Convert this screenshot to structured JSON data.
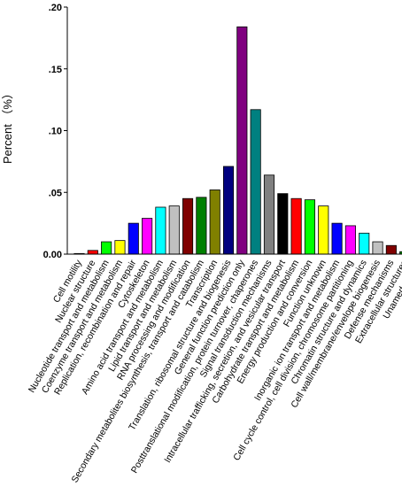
{
  "chart_data": {
    "type": "bar",
    "title": "",
    "xlabel": "",
    "ylabel": "Percent （%）",
    "ylim": [
      0,
      0.2
    ],
    "yticks": [
      ".20",
      ".15",
      ".10",
      ".05",
      "0.00"
    ],
    "grid": false,
    "legend": "none",
    "categories": [
      "Cell motility",
      "Nuclear structure",
      "Nucleotide transport and metabolism",
      "Coenzyme transport and metabolism",
      "Replication, recombination and repair",
      "Cytoskeleton",
      "Amino acid transport and metabolism",
      "Lipid transport and metabolism",
      "RNA processing and modification",
      "Secondary metabolites biosynthesis, transport and catabolism",
      "Transcription",
      "Translation, ribosomal structure and biogenesis",
      "General function prediction only",
      "Posttranslational modification, protein turnover, chaperones",
      "Signal transduction mechanisms",
      "Intracellular trafficking, secretion, and vesicular transport",
      "Carbohydrate transport and metabolism",
      "Energy production and conversion",
      "Function unknown",
      "Inorganic ion transport and metabolism",
      "Cell cycle control, cell division, chromosome partitioning",
      "Chromatin structure and dynamics",
      "Cell wall/membrane/envelope biogenesis",
      "Defense mechanisms",
      "Extracellular structures",
      "Unamed protein"
    ],
    "values": [
      0.0005,
      0.003,
      0.01,
      0.011,
      0.025,
      0.029,
      0.038,
      0.039,
      0.045,
      0.046,
      0.052,
      0.071,
      0.184,
      0.117,
      0.064,
      0.049,
      0.045,
      0.044,
      0.039,
      0.025,
      0.023,
      0.017,
      0.01,
      0.007,
      0.002,
      0.0
    ],
    "colors": [
      "#ffffff",
      "#ff0000",
      "#00ff00",
      "#ffff00",
      "#0000ff",
      "#ff00ff",
      "#00ffff",
      "#c0c0c0",
      "#800000",
      "#008000",
      "#808000",
      "#000080",
      "#800080",
      "#008080",
      "#808080",
      "#000000",
      "#ff0000",
      "#00ff00",
      "#ffff00",
      "#0000ff",
      "#ff00ff",
      "#00ffff",
      "#c0c0c0",
      "#800000",
      "#008000",
      "#808000"
    ]
  }
}
